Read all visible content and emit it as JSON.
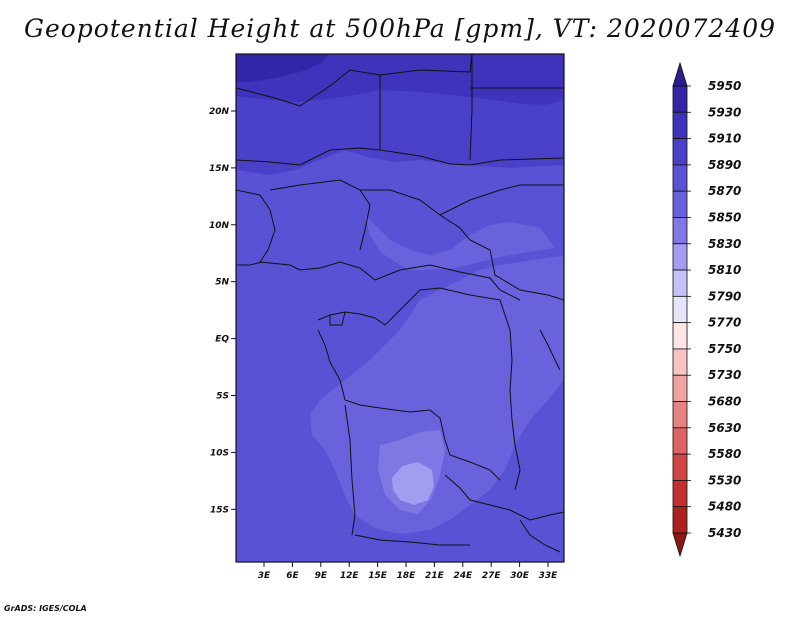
{
  "title": "Geopotential Height at 500hPa [gpm], VT: 2020072409",
  "credit": "GrADS: IGES/COLA",
  "map": {
    "lon_labels": [
      "3E",
      "6E",
      "9E",
      "12E",
      "15E",
      "18E",
      "21E",
      "24E",
      "27E",
      "30E",
      "33E"
    ],
    "lat_labels": [
      "20N",
      "15N",
      "10N",
      "5N",
      "EQ",
      "5S",
      "10S",
      "15S"
    ]
  },
  "colorbar": {
    "levels": [
      "5950",
      "5930",
      "5910",
      "5890",
      "5870",
      "5850",
      "5830",
      "5810",
      "5790",
      "5770",
      "5750",
      "5730",
      "5680",
      "5630",
      "5580",
      "5530",
      "5480",
      "5430"
    ],
    "colors": [
      "#2b1e8c",
      "#3325a8",
      "#3f33bc",
      "#4b40c8",
      "#5a52d4",
      "#6a62dc",
      "#7e77e4",
      "#a29df0",
      "#c4c2f6",
      "#e6e6fb",
      "#fde6e6",
      "#f7c4c4",
      "#f0a3a3",
      "#e58282",
      "#dc6464",
      "#d24646",
      "#c42f2f",
      "#ad2020",
      "#8c1515"
    ]
  }
}
